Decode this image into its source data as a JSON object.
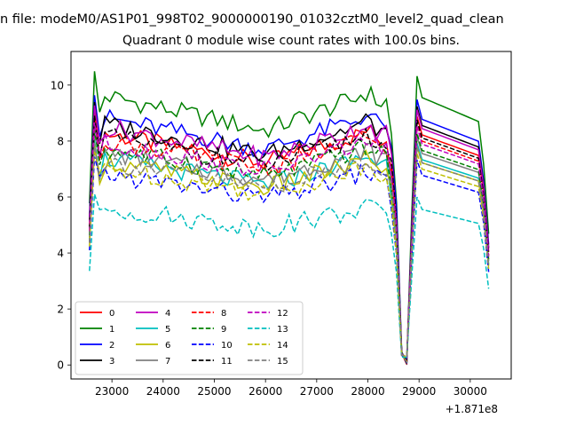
{
  "chart_data": {
    "type": "line",
    "suptitle": "n file: modeM0/AS1P01_998T02_9000000190_01032cztM0_level2_quad_clean",
    "title": "Quadrant 0 module wise count rates with 100.0s bins.",
    "xlabel": "",
    "ylabel": "",
    "x_offset_text": "+1.871e8",
    "xlim": [
      22200,
      30800
    ],
    "ylim": [
      -0.5,
      11.2
    ],
    "xticks": [
      23000,
      24000,
      25000,
      26000,
      27000,
      28000,
      29000,
      30000
    ],
    "yticks": [
      0,
      2,
      4,
      6,
      8,
      10
    ],
    "x_range": [
      22560,
      30440
    ],
    "x_step": 100,
    "legend_loc": "lower-left",
    "series": [
      {
        "name": "0",
        "color": "#ff0000",
        "dash": "solid",
        "level": 7.4
      },
      {
        "name": "1",
        "color": "#008000",
        "dash": "solid",
        "level": 8.6
      },
      {
        "name": "2",
        "color": "#0000ff",
        "dash": "solid",
        "level": 7.9
      },
      {
        "name": "3",
        "color": "#000000",
        "dash": "solid",
        "level": 7.7
      },
      {
        "name": "4",
        "color": "#bf00bf",
        "dash": "solid",
        "level": 7.6
      },
      {
        "name": "5",
        "color": "#00bfbf",
        "dash": "solid",
        "level": 6.6
      },
      {
        "name": "6",
        "color": "#bfbf00",
        "dash": "solid",
        "level": 6.5
      },
      {
        "name": "7",
        "color": "#808080",
        "dash": "solid",
        "level": 6.8
      },
      {
        "name": "8",
        "color": "#ff0000",
        "dash": "dashed",
        "level": 7.2
      },
      {
        "name": "9",
        "color": "#008000",
        "dash": "dashed",
        "level": 6.9
      },
      {
        "name": "10",
        "color": "#0000ff",
        "dash": "dashed",
        "level": 6.1
      },
      {
        "name": "11",
        "color": "#000000",
        "dash": "dashed",
        "level": 7.3
      },
      {
        "name": "12",
        "color": "#bf00bf",
        "dash": "dashed",
        "level": 7.1
      },
      {
        "name": "13",
        "color": "#00bfbf",
        "dash": "dashed",
        "level": 5.0
      },
      {
        "name": "14",
        "color": "#bfbf00",
        "dash": "dashed",
        "level": 6.3
      },
      {
        "name": "15",
        "color": "#808080",
        "dash": "dashed",
        "level": 6.5
      }
    ]
  }
}
